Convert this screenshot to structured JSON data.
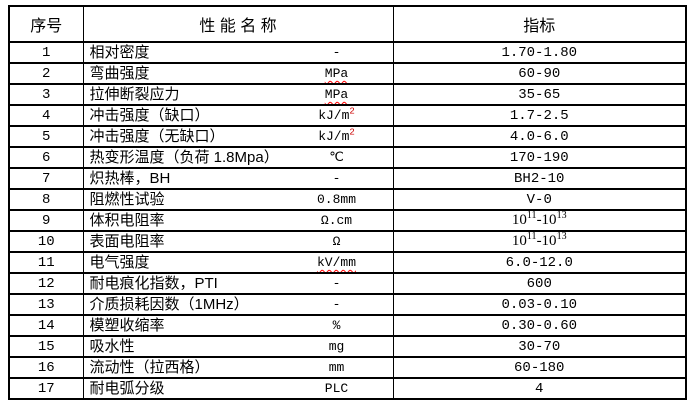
{
  "table": {
    "colors": {
      "background": "#ffffff",
      "border": "#000000",
      "text": "#000000",
      "spellcheck_wavy": "#ff0000",
      "superscript_red": "#cc0000"
    },
    "headers": [
      {
        "label": "序号"
      },
      {
        "label": "性 能 名 称"
      },
      {
        "label": "指标"
      }
    ],
    "rows": [
      {
        "no": "1",
        "name": "相对密度",
        "unit": {
          "text": "-"
        },
        "value": {
          "text": "1.70-1.80"
        }
      },
      {
        "no": "2",
        "name": "弯曲强度",
        "unit": {
          "text": "MPa",
          "wavy": true
        },
        "value": {
          "text": "60-90"
        }
      },
      {
        "no": "3",
        "name": "拉伸断裂应力",
        "unit": {
          "text": "MPa",
          "wavy": true
        },
        "value": {
          "text": "35-65"
        }
      },
      {
        "no": "4",
        "name": "冲击强度（缺口）",
        "unit": {
          "text": "kJ/m",
          "sup": "2"
        },
        "value": {
          "text": "1.7-2.5"
        }
      },
      {
        "no": "5",
        "name": "冲击强度（无缺口）",
        "unit": {
          "text": "kJ/m",
          "sup": "2"
        },
        "value": {
          "text": "4.0-6.0"
        }
      },
      {
        "no": "6",
        "name": "热变形温度（负荷 1.8Mpa）",
        "unit": {
          "text": "℃"
        },
        "value": {
          "text": "170-190"
        }
      },
      {
        "no": "7",
        "name": "炽热棒，BH",
        "unit": {
          "text": "-"
        },
        "value": {
          "text": "BH2-10"
        }
      },
      {
        "no": "8",
        "name": "阻燃性试验",
        "unit": {
          "text": "0.8mm"
        },
        "value": {
          "text": "V-0"
        }
      },
      {
        "no": "9",
        "name": "体积电阻率",
        "unit": {
          "text": "Ω.cm"
        },
        "value": {
          "serif": true,
          "parts": [
            {
              "t": "10"
            },
            {
              "t": "11",
              "sup": true
            },
            {
              "t": "-10"
            },
            {
              "t": "13",
              "sup": true
            }
          ]
        }
      },
      {
        "no": "10",
        "name": "表面电阻率",
        "unit": {
          "text": "Ω"
        },
        "value": {
          "serif": true,
          "parts": [
            {
              "t": "10"
            },
            {
              "t": "11",
              "sup": true
            },
            {
              "t": "-10"
            },
            {
              "t": "13",
              "sup": true
            }
          ]
        }
      },
      {
        "no": "11",
        "name": "电气强度",
        "unit": {
          "text": "kV/mm",
          "wavy": true
        },
        "value": {
          "text": "6.0-12.0"
        }
      },
      {
        "no": "12",
        "name": "耐电痕化指数，PTI",
        "unit": {
          "text": "-"
        },
        "value": {
          "text": "600"
        }
      },
      {
        "no": "13",
        "name": "介质损耗因数（1MHz）",
        "unit": {
          "text": "-"
        },
        "value": {
          "text": "0.03-0.10"
        }
      },
      {
        "no": "14",
        "name": "模塑收缩率",
        "unit": {
          "text": "%"
        },
        "value": {
          "text": "0.30-0.60"
        }
      },
      {
        "no": "15",
        "name": "吸水性",
        "unit": {
          "text": "mg"
        },
        "value": {
          "text": "30-70"
        }
      },
      {
        "no": "16",
        "name": "流动性（拉西格）",
        "unit": {
          "text": "mm"
        },
        "value": {
          "text": "60-180"
        }
      },
      {
        "no": "17",
        "name": "耐电弧分级",
        "unit": {
          "text": "PLC"
        },
        "value": {
          "text": "4"
        }
      }
    ]
  }
}
